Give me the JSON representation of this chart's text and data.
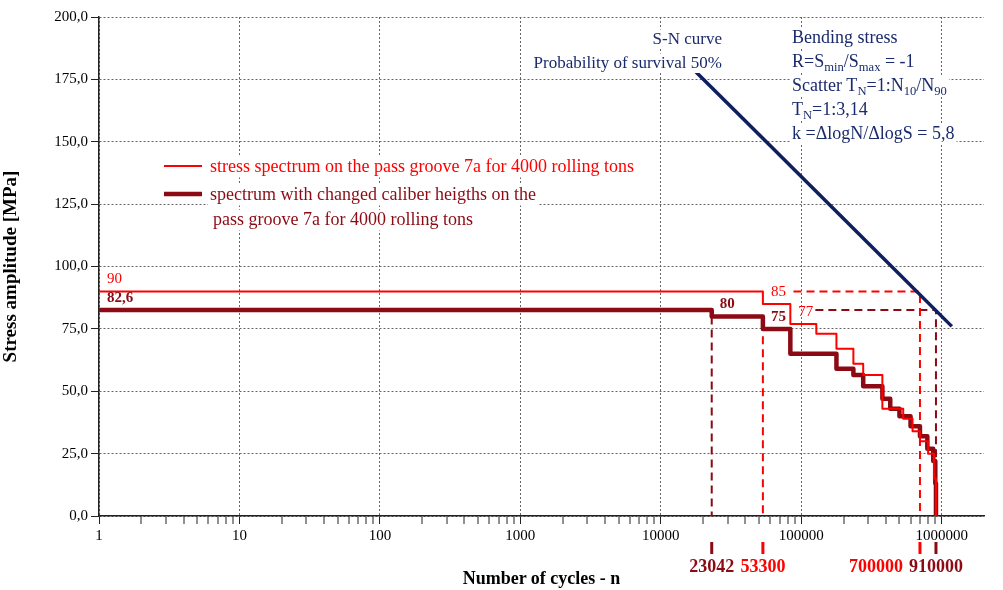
{
  "chart_data": {
    "type": "step",
    "xlabel": "Number of cycles - n",
    "ylabel": "Stress amplitude [MPa]",
    "xlim": [
      1,
      2000000
    ],
    "ylim": [
      0,
      200
    ],
    "log": "x",
    "grid": true,
    "legend": "top left",
    "xticks": [
      1,
      {
        "value": 2,
        "label": null
      },
      {
        "value": 3,
        "label": null
      },
      {
        "value": 4,
        "label": null
      },
      {
        "value": 5,
        "label": null
      },
      {
        "value": 6,
        "label": null
      },
      {
        "value": 7,
        "label": null
      },
      {
        "value": 8,
        "label": null
      },
      {
        "value": 9,
        "label": null
      },
      10,
      {
        "value": 20,
        "label": null
      },
      {
        "value": 30,
        "label": null
      },
      {
        "value": 40,
        "label": null
      },
      {
        "value": 50,
        "label": null
      },
      {
        "value": 60,
        "label": null
      },
      {
        "value": 70,
        "label": null
      },
      {
        "value": 80,
        "label": null
      },
      {
        "value": 90,
        "label": null
      },
      100,
      {
        "value": 200,
        "label": null
      },
      {
        "value": 300,
        "label": null
      },
      {
        "value": 400,
        "label": null
      },
      {
        "value": 500,
        "label": null
      },
      {
        "value": 600,
        "label": null
      },
      {
        "value": 700,
        "label": null
      },
      {
        "value": 800,
        "label": null
      },
      {
        "value": 900,
        "label": null
      },
      1000,
      {
        "value": 2000,
        "label": null
      },
      {
        "value": 3000,
        "label": null
      },
      {
        "value": 4000,
        "label": null
      },
      {
        "value": 5000,
        "label": null
      },
      {
        "value": 6000,
        "label": null
      },
      {
        "value": 7000,
        "label": null
      },
      {
        "value": 8000,
        "label": null
      },
      {
        "value": 9000,
        "label": null
      },
      10000,
      {
        "value": 20000,
        "label": null
      },
      {
        "value": 30000,
        "label": null
      },
      {
        "value": 40000,
        "label": null
      },
      {
        "value": 50000,
        "label": null
      },
      {
        "value": 60000,
        "label": null
      },
      {
        "value": 70000,
        "label": null
      },
      {
        "value": 80000,
        "label": null
      },
      {
        "value": 90000,
        "label": null
      },
      100000,
      {
        "value": 200000,
        "label": null
      },
      {
        "value": 300000,
        "label": null
      },
      {
        "value": 400000,
        "label": null
      },
      {
        "value": 500000,
        "label": null
      },
      {
        "value": 600000,
        "label": null
      },
      {
        "value": 700000,
        "label": null
      },
      {
        "value": 800000,
        "label": null
      },
      {
        "value": 900000,
        "label": null
      },
      1000000
    ],
    "yticks": [
      {
        "value": 0,
        "label": "0,0"
      },
      {
        "value": 25,
        "label": "25,0"
      },
      {
        "value": 50,
        "label": "50,0"
      },
      {
        "value": 75,
        "label": "75,0"
      },
      {
        "value": 100,
        "label": "100,0"
      },
      {
        "value": 125,
        "label": "125,0"
      },
      {
        "value": 150,
        "label": "150,0"
      },
      {
        "value": 175,
        "label": "175,0"
      },
      {
        "value": 200,
        "label": "200,0"
      }
    ],
    "series": [
      {
        "name": "stress spectrum on the pass groove 7a for 4000 rolling tons",
        "color": "#ff0000",
        "x": [
          1,
          53300,
          83600,
          128000,
          178000,
          235000,
          276000,
          378000,
          532000,
          620000,
          700000,
          800000,
          880000,
          910000
        ],
        "values": [
          90,
          85,
          77,
          73,
          67,
          61,
          56.5,
          43,
          39,
          34,
          30,
          25,
          15,
          0
        ],
        "value_labels": [
          "90",
          "85",
          "77",
          null,
          null,
          null,
          null,
          null,
          null,
          null,
          null,
          null,
          null,
          null
        ]
      },
      {
        "name": "spectrum with changed caliber heigths on the pass groove 7a for 4000 rolling tons",
        "color": "#8b0a14",
        "x": [
          1,
          23042,
          53300,
          83600,
          178000,
          235000,
          276000,
          378000,
          430000,
          500000,
          600000,
          700000,
          790000,
          870000,
          900000,
          910000
        ],
        "values": [
          82.6,
          80,
          75,
          65,
          59,
          56.5,
          52,
          47,
          43,
          40,
          36,
          32,
          27,
          22,
          13,
          0
        ],
        "value_labels": [
          "82,6",
          "80",
          "75",
          null,
          null,
          null,
          null,
          null,
          null,
          null,
          null,
          null,
          null,
          null,
          null,
          null
        ]
      },
      {
        "type": "line",
        "color": "#0d1f5e",
        "x": [
          17800,
          1180000
        ],
        "values": [
          178,
          76
        ]
      },
      {
        "type": "line",
        "line_style": "dashed",
        "color": "#ff0000",
        "x": [
          88000,
          700000,
          700000
        ],
        "values": [
          90,
          90,
          0
        ]
      },
      {
        "type": "line",
        "line_style": "dashed",
        "color": "#8b0a14",
        "x": [
          126000,
          910000,
          910000
        ],
        "values": [
          82.6,
          82.6,
          0
        ]
      },
      {
        "type": "line",
        "line_style": "dashed",
        "color": "#8b0a14",
        "x": [
          23042,
          23042
        ],
        "values": [
          80,
          0
        ]
      },
      {
        "type": "line",
        "line_style": "dashed",
        "color": "#ff0000",
        "x": [
          53300,
          53300
        ],
        "values": [
          72,
          0
        ]
      }
    ],
    "annotations": [
      "S-N curve",
      "Probability of survival 50%",
      "Bending stress",
      "R=S$_{min}$/S$_{max}$ = -1",
      "Scatter T$_{N}$=1:N$_{10}$/N$_{90}$",
      "T$_{N}$=1:3,14",
      "k =ΔlogN/ΔlogS = 5,8",
      {
        "text": "23042",
        "x": 23042,
        "y": 0
      },
      {
        "text": "53300",
        "x": 53300,
        "y": 0
      },
      {
        "text": "700000",
        "x": 700000,
        "y": 0
      },
      {
        "text": "910000",
        "x": 910000,
        "y": 0
      }
    ]
  }
}
